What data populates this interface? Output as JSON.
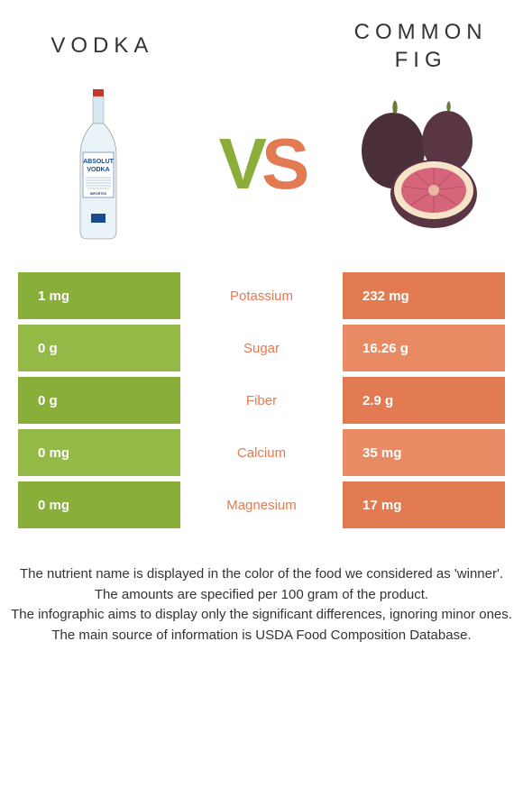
{
  "left": {
    "title": "VODKA"
  },
  "right": {
    "title": "COMMON FIG"
  },
  "vs": {
    "v": "V",
    "s": "S"
  },
  "colors": {
    "left_bg": "#8aae3a",
    "left_bg_alt": "#95b947",
    "right_bg": "#e27a52",
    "right_bg_alt": "#e88a63",
    "winner_left": "#8aae3a",
    "winner_right": "#e27a52"
  },
  "rows": [
    {
      "label": "Potassium",
      "left": "1 mg",
      "right": "232 mg",
      "winner": "right"
    },
    {
      "label": "Sugar",
      "left": "0 g",
      "right": "16.26 g",
      "winner": "right"
    },
    {
      "label": "Fiber",
      "left": "0 g",
      "right": "2.9 g",
      "winner": "right"
    },
    {
      "label": "Calcium",
      "left": "0 mg",
      "right": "35 mg",
      "winner": "right"
    },
    {
      "label": "Magnesium",
      "left": "0 mg",
      "right": "17 mg",
      "winner": "right"
    }
  ],
  "footer": [
    "The nutrient name is displayed in the color of the food we considered as 'winner'.",
    "The amounts are specified per 100 gram of the product.",
    "The infographic aims to display only the significant differences, ignoring minor ones.",
    "The main source of information is USDA Food Composition Database."
  ]
}
